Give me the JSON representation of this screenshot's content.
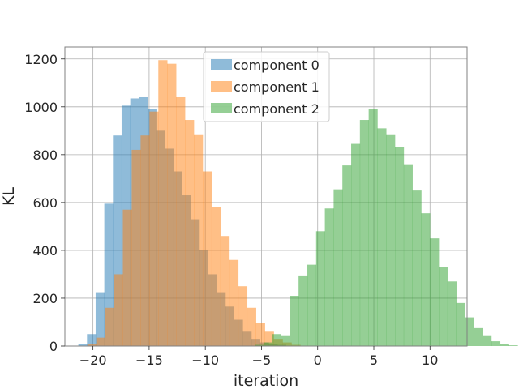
{
  "chart_data": {
    "type": "histogram",
    "xlabel": "iteration",
    "ylabel": "KL",
    "xlim": [
      -22.5,
      13.3
    ],
    "ylim": [
      0,
      1250
    ],
    "xticks": [
      -20,
      -15,
      -10,
      -5,
      0,
      5,
      10
    ],
    "yticks": [
      0,
      200,
      400,
      600,
      800,
      1000,
      1200
    ],
    "grid": true,
    "legend_position": "upper center",
    "series": [
      {
        "name": "component 0",
        "color": "#1f77b4",
        "opacity": 0.5,
        "bin_start": -21.3,
        "bin_width": 0.77,
        "counts": [
          10,
          50,
          225,
          595,
          880,
          1005,
          1035,
          1040,
          990,
          900,
          825,
          730,
          630,
          530,
          400,
          300,
          225,
          165,
          110,
          60,
          30,
          15,
          10,
          5
        ]
      },
      {
        "name": "component 1",
        "color": "#ff7f0e",
        "opacity": 0.5,
        "bin_start": -20.5,
        "bin_width": 0.79,
        "counts": [
          10,
          35,
          160,
          300,
          570,
          820,
          880,
          980,
          1195,
          1180,
          1040,
          945,
          885,
          730,
          580,
          460,
          360,
          250,
          160,
          95,
          60,
          30,
          15,
          5
        ]
      },
      {
        "name": "component 2",
        "color": "#2ca02c",
        "opacity": 0.5,
        "bin_start": -5.6,
        "bin_width": 0.78,
        "counts": [
          5,
          15,
          50,
          45,
          210,
          295,
          340,
          480,
          575,
          655,
          755,
          845,
          945,
          990,
          910,
          885,
          830,
          760,
          650,
          555,
          450,
          330,
          270,
          180,
          120,
          75,
          45,
          20,
          8,
          3
        ]
      }
    ]
  }
}
